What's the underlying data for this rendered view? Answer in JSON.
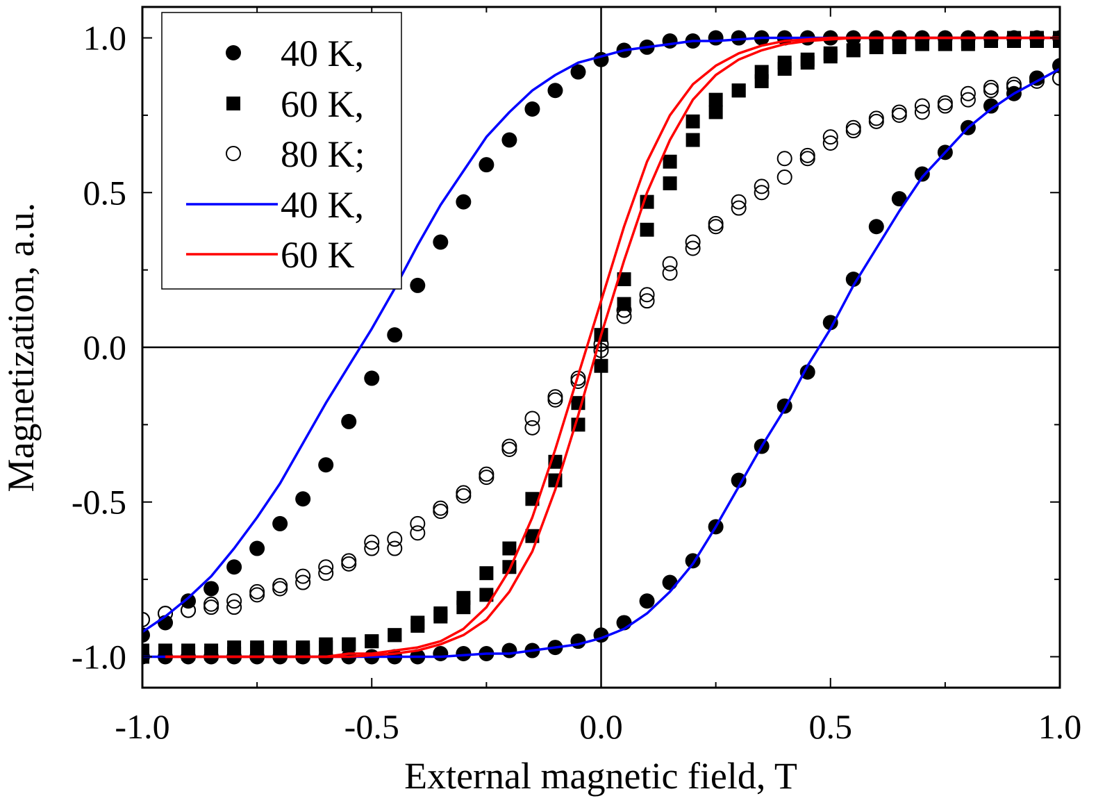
{
  "chart_data": {
    "type": "scatter",
    "title": "",
    "xlabel": "External magnetic field, T",
    "ylabel": "Magnetization, a.u.",
    "xlim": [
      -1.0,
      1.0
    ],
    "ylim": [
      -1.1,
      1.1
    ],
    "x_ticks": [
      -1.0,
      -0.5,
      0.0,
      0.5,
      1.0
    ],
    "x_tick_labels": [
      "-1.0",
      "-0.5",
      "0.0",
      "0.5",
      "1.0"
    ],
    "y_ticks": [
      -1.0,
      -0.5,
      0.0,
      0.5,
      1.0
    ],
    "y_tick_labels": [
      "-1.0",
      "-0.5",
      "0.0",
      "0.5",
      "1.0"
    ],
    "legend_position": "top-left",
    "legend": [
      {
        "label": "40 K,",
        "kind": "filled-circle"
      },
      {
        "label": "60 K,",
        "kind": "filled-square"
      },
      {
        "label": "80 K;",
        "kind": "open-circle"
      },
      {
        "label": "40 K,",
        "kind": "line",
        "color": "#0000ff"
      },
      {
        "label": "60 K",
        "kind": "line",
        "color": "#ff0000"
      }
    ],
    "series": [
      {
        "name": "40 K, (data, descending branch)",
        "kind": "filled-circle",
        "x": [
          1.0,
          0.95,
          0.9,
          0.85,
          0.8,
          0.75,
          0.7,
          0.65,
          0.6,
          0.55,
          0.5,
          0.45,
          0.4,
          0.35,
          0.3,
          0.25,
          0.2,
          0.15,
          0.1,
          0.05,
          0.0,
          -0.05,
          -0.1,
          -0.15,
          -0.2,
          -0.25,
          -0.3,
          -0.35,
          -0.4,
          -0.45,
          -0.5,
          -0.55,
          -0.6,
          -0.65,
          -0.7,
          -0.75,
          -0.8,
          -0.85,
          -0.9,
          -0.95,
          -1.0
        ],
        "y": [
          1.0,
          1.0,
          1.0,
          1.0,
          1.0,
          1.0,
          1.0,
          1.0,
          1.0,
          1.0,
          1.0,
          1.0,
          1.0,
          1.0,
          1.0,
          1.0,
          0.99,
          0.99,
          0.97,
          0.96,
          0.93,
          0.89,
          0.83,
          0.77,
          0.67,
          0.59,
          0.47,
          0.34,
          0.2,
          0.04,
          -0.1,
          -0.24,
          -0.38,
          -0.49,
          -0.57,
          -0.65,
          -0.71,
          -0.78,
          -0.82,
          -0.89,
          -0.93
        ]
      },
      {
        "name": "40 K, (data, ascending branch)",
        "kind": "filled-circle",
        "x": [
          -1.0,
          -0.95,
          -0.9,
          -0.85,
          -0.8,
          -0.75,
          -0.7,
          -0.65,
          -0.6,
          -0.55,
          -0.5,
          -0.45,
          -0.4,
          -0.35,
          -0.3,
          -0.25,
          -0.2,
          -0.15,
          -0.1,
          -0.05,
          0.0,
          0.05,
          0.1,
          0.15,
          0.2,
          0.25,
          0.3,
          0.35,
          0.4,
          0.45,
          0.5,
          0.55,
          0.6,
          0.65,
          0.7,
          0.75,
          0.8,
          0.85,
          0.9,
          0.95,
          1.0
        ],
        "y": [
          -1.0,
          -1.0,
          -1.0,
          -1.0,
          -1.0,
          -1.0,
          -1.0,
          -1.0,
          -1.0,
          -1.0,
          -1.0,
          -1.0,
          -1.0,
          -0.99,
          -0.99,
          -0.99,
          -0.98,
          -0.98,
          -0.97,
          -0.95,
          -0.93,
          -0.89,
          -0.82,
          -0.76,
          -0.69,
          -0.58,
          -0.43,
          -0.32,
          -0.19,
          -0.08,
          0.08,
          0.22,
          0.39,
          0.48,
          0.56,
          0.63,
          0.71,
          0.78,
          0.82,
          0.87,
          0.91
        ]
      },
      {
        "name": "60 K, (data, descending branch)",
        "kind": "filled-square",
        "x": [
          1.0,
          0.95,
          0.9,
          0.85,
          0.8,
          0.75,
          0.7,
          0.65,
          0.6,
          0.55,
          0.5,
          0.45,
          0.4,
          0.35,
          0.3,
          0.25,
          0.2,
          0.15,
          0.1,
          0.05,
          0.0,
          -0.05,
          -0.1,
          -0.15,
          -0.2,
          -0.25,
          -0.3,
          -0.35,
          -0.4,
          -0.45,
          -0.5,
          -0.55,
          -0.6,
          -0.65,
          -0.7,
          -0.75,
          -0.8,
          -0.85,
          -0.9,
          -0.95,
          -1.0
        ],
        "y": [
          1.0,
          1.0,
          1.0,
          0.99,
          0.99,
          0.98,
          0.98,
          0.98,
          0.97,
          0.96,
          0.95,
          0.93,
          0.92,
          0.89,
          0.83,
          0.8,
          0.73,
          0.6,
          0.47,
          0.22,
          0.04,
          -0.18,
          -0.37,
          -0.49,
          -0.65,
          -0.73,
          -0.81,
          -0.86,
          -0.89,
          -0.93,
          -0.95,
          -0.96,
          -0.96,
          -0.97,
          -0.97,
          -0.97,
          -0.97,
          -0.98,
          -0.98,
          -0.98,
          -0.98
        ]
      },
      {
        "name": "60 K, (data, ascending branch)",
        "kind": "filled-square",
        "x": [
          -1.0,
          -0.95,
          -0.9,
          -0.85,
          -0.8,
          -0.75,
          -0.7,
          -0.65,
          -0.6,
          -0.55,
          -0.5,
          -0.45,
          -0.4,
          -0.35,
          -0.3,
          -0.25,
          -0.2,
          -0.15,
          -0.1,
          -0.05,
          0.0,
          0.05,
          0.1,
          0.15,
          0.2,
          0.25,
          0.3,
          0.35,
          0.4,
          0.45,
          0.5,
          0.55,
          0.6,
          0.65,
          0.7,
          0.75,
          0.8,
          0.85,
          0.9,
          0.95,
          1.0
        ],
        "y": [
          -1.0,
          -0.99,
          -0.99,
          -0.99,
          -0.99,
          -0.98,
          -0.98,
          -0.98,
          -0.97,
          -0.96,
          -0.95,
          -0.93,
          -0.9,
          -0.87,
          -0.84,
          -0.8,
          -0.71,
          -0.61,
          -0.43,
          -0.25,
          -0.06,
          0.14,
          0.38,
          0.53,
          0.67,
          0.76,
          0.83,
          0.86,
          0.9,
          0.92,
          0.94,
          0.96,
          0.97,
          0.97,
          0.98,
          0.98,
          0.98,
          0.99,
          0.99,
          0.99,
          0.99
        ]
      },
      {
        "name": "80 K; (data, descending branch)",
        "kind": "open-circle",
        "x": [
          1.0,
          0.95,
          0.9,
          0.85,
          0.8,
          0.75,
          0.7,
          0.65,
          0.6,
          0.55,
          0.5,
          0.45,
          0.4,
          0.35,
          0.3,
          0.25,
          0.2,
          0.15,
          0.1,
          0.05,
          0.0,
          -0.05,
          -0.1,
          -0.15,
          -0.2,
          -0.25,
          -0.3,
          -0.35,
          -0.4,
          -0.45,
          -0.5,
          -0.55,
          -0.6,
          -0.65,
          -0.7,
          -0.75,
          -0.8,
          -0.85,
          -0.9,
          -0.95,
          -1.0
        ],
        "y": [
          0.87,
          0.87,
          0.85,
          0.84,
          0.82,
          0.79,
          0.78,
          0.76,
          0.74,
          0.71,
          0.68,
          0.62,
          0.61,
          0.52,
          0.47,
          0.4,
          0.34,
          0.27,
          0.17,
          0.12,
          0.01,
          -0.1,
          -0.16,
          -0.23,
          -0.32,
          -0.41,
          -0.47,
          -0.52,
          -0.57,
          -0.62,
          -0.63,
          -0.69,
          -0.71,
          -0.74,
          -0.77,
          -0.79,
          -0.82,
          -0.83,
          -0.85,
          -0.86,
          -0.88
        ]
      },
      {
        "name": "80 K; (data, ascending branch)",
        "kind": "open-circle",
        "x": [
          -1.0,
          -0.95,
          -0.9,
          -0.85,
          -0.8,
          -0.75,
          -0.7,
          -0.65,
          -0.6,
          -0.55,
          -0.5,
          -0.45,
          -0.4,
          -0.35,
          -0.3,
          -0.25,
          -0.2,
          -0.15,
          -0.1,
          -0.05,
          0.0,
          0.05,
          0.1,
          0.15,
          0.2,
          0.25,
          0.3,
          0.35,
          0.4,
          0.45,
          0.5,
          0.55,
          0.6,
          0.65,
          0.7,
          0.75,
          0.8,
          0.85,
          0.9,
          0.95,
          1.0
        ],
        "y": [
          -0.88,
          -0.86,
          -0.85,
          -0.84,
          -0.84,
          -0.8,
          -0.78,
          -0.76,
          -0.73,
          -0.7,
          -0.65,
          -0.65,
          -0.6,
          -0.53,
          -0.48,
          -0.42,
          -0.33,
          -0.26,
          -0.17,
          -0.11,
          -0.01,
          0.1,
          0.15,
          0.24,
          0.32,
          0.39,
          0.45,
          0.5,
          0.55,
          0.61,
          0.66,
          0.7,
          0.73,
          0.75,
          0.76,
          0.78,
          0.8,
          0.83,
          0.84,
          0.86,
          0.87
        ]
      },
      {
        "name": "40 K, (fit, descending branch)",
        "kind": "line",
        "color": "#0000ff",
        "x": [
          -1.0,
          -0.95,
          -0.9,
          -0.85,
          -0.8,
          -0.75,
          -0.7,
          -0.65,
          -0.6,
          -0.55,
          -0.5,
          -0.45,
          -0.4,
          -0.35,
          -0.3,
          -0.25,
          -0.2,
          -0.15,
          -0.1,
          -0.05,
          0.0,
          0.05,
          0.1,
          0.15,
          0.2,
          0.25,
          0.3,
          0.35,
          0.4,
          0.45,
          0.5,
          0.55,
          0.6,
          0.65,
          0.7,
          0.75,
          0.8,
          0.85,
          0.9,
          0.95,
          1.0
        ],
        "y": [
          -0.92,
          -0.87,
          -0.81,
          -0.74,
          -0.65,
          -0.55,
          -0.44,
          -0.31,
          -0.18,
          -0.06,
          0.06,
          0.19,
          0.33,
          0.46,
          0.57,
          0.68,
          0.76,
          0.83,
          0.88,
          0.92,
          0.94,
          0.96,
          0.97,
          0.98,
          0.99,
          0.99,
          0.995,
          1.0,
          1.0,
          1.0,
          1.0,
          1.0,
          1.0,
          1.0,
          1.0,
          1.0,
          1.0,
          1.0,
          1.0,
          1.0,
          1.0
        ]
      },
      {
        "name": "40 K, (fit, ascending branch)",
        "kind": "line",
        "color": "#0000ff",
        "x": [
          -1.0,
          -0.95,
          -0.9,
          -0.85,
          -0.8,
          -0.75,
          -0.7,
          -0.65,
          -0.6,
          -0.55,
          -0.5,
          -0.45,
          -0.4,
          -0.35,
          -0.3,
          -0.25,
          -0.2,
          -0.15,
          -0.1,
          -0.05,
          0.0,
          0.05,
          0.1,
          0.15,
          0.2,
          0.25,
          0.3,
          0.35,
          0.4,
          0.45,
          0.5,
          0.55,
          0.6,
          0.65,
          0.7,
          0.75,
          0.8,
          0.85,
          0.9,
          0.95,
          1.0
        ],
        "y": [
          -1.0,
          -1.0,
          -1.0,
          -1.0,
          -1.0,
          -1.0,
          -1.0,
          -1.0,
          -1.0,
          -1.0,
          -1.0,
          -1.0,
          -1.0,
          -1.0,
          -0.995,
          -0.99,
          -0.99,
          -0.98,
          -0.97,
          -0.96,
          -0.94,
          -0.91,
          -0.86,
          -0.79,
          -0.7,
          -0.58,
          -0.45,
          -0.32,
          -0.2,
          -0.06,
          0.06,
          0.2,
          0.32,
          0.44,
          0.55,
          0.63,
          0.71,
          0.77,
          0.82,
          0.86,
          0.9
        ]
      },
      {
        "name": "60 K (fit, descending branch)",
        "kind": "line",
        "color": "#ff0000",
        "x": [
          -0.95,
          -0.9,
          -0.85,
          -0.8,
          -0.75,
          -0.7,
          -0.65,
          -0.6,
          -0.55,
          -0.5,
          -0.45,
          -0.4,
          -0.35,
          -0.3,
          -0.25,
          -0.2,
          -0.15,
          -0.1,
          -0.05,
          0.0,
          0.05,
          0.1,
          0.15,
          0.2,
          0.25,
          0.3,
          0.35,
          0.4,
          0.45,
          0.5,
          0.55,
          0.6,
          0.65,
          0.7,
          0.75,
          0.8,
          0.85,
          0.9,
          0.95,
          1.0
        ],
        "y": [
          -1.0,
          -1.0,
          -1.0,
          -1.0,
          -1.0,
          -1.0,
          -1.0,
          -1.0,
          -0.99,
          -0.99,
          -0.98,
          -0.97,
          -0.95,
          -0.91,
          -0.84,
          -0.72,
          -0.55,
          -0.33,
          -0.09,
          0.15,
          0.39,
          0.6,
          0.75,
          0.85,
          0.91,
          0.95,
          0.975,
          0.99,
          0.995,
          1.0,
          1.0,
          1.0,
          1.0,
          1.0,
          1.0,
          1.0,
          1.0,
          1.0,
          1.0,
          1.0
        ]
      },
      {
        "name": "60 K (fit, ascending branch)",
        "kind": "line",
        "color": "#ff0000",
        "x": [
          -0.95,
          -0.9,
          -0.85,
          -0.8,
          -0.75,
          -0.7,
          -0.65,
          -0.6,
          -0.55,
          -0.5,
          -0.45,
          -0.4,
          -0.35,
          -0.3,
          -0.25,
          -0.2,
          -0.15,
          -0.1,
          -0.05,
          0.0,
          0.05,
          0.1,
          0.15,
          0.2,
          0.25,
          0.3,
          0.35,
          0.4,
          0.45,
          0.5,
          0.55,
          0.6,
          0.65,
          0.7,
          0.75,
          0.8,
          0.85,
          0.9,
          0.95,
          1.0
        ],
        "y": [
          -1.0,
          -1.0,
          -1.0,
          -1.0,
          -1.0,
          -1.0,
          -1.0,
          -1.0,
          -1.0,
          -0.995,
          -0.99,
          -0.98,
          -0.96,
          -0.93,
          -0.88,
          -0.79,
          -0.66,
          -0.46,
          -0.22,
          0.04,
          0.28,
          0.5,
          0.67,
          0.8,
          0.88,
          0.93,
          0.96,
          0.98,
          0.99,
          0.995,
          1.0,
          1.0,
          1.0,
          1.0,
          1.0,
          1.0,
          1.0,
          1.0,
          1.0,
          1.0
        ]
      }
    ]
  }
}
